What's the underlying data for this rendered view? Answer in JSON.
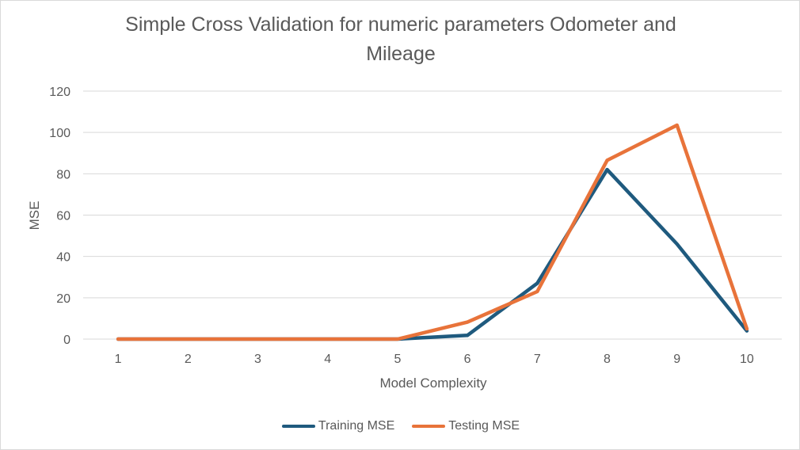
{
  "chart_data": {
    "type": "line",
    "title_lines": [
      "Simple Cross Validation for numeric parameters Odometer and",
      "Mileage"
    ],
    "xlabel": "Model Complexity",
    "ylabel": "MSE",
    "x": [
      1,
      2,
      3,
      4,
      5,
      6,
      7,
      8,
      9,
      10
    ],
    "ylim": [
      0,
      120
    ],
    "yticks": [
      0,
      20,
      40,
      60,
      80,
      100,
      120
    ],
    "grid": true,
    "legend_position": "bottom",
    "series": [
      {
        "name": "Training MSE",
        "color": "#1f5a7e",
        "values": [
          0,
          0,
          0,
          0,
          0,
          1.8,
          27,
          82,
          46,
          4
        ]
      },
      {
        "name": "Testing MSE",
        "color": "#e8733a",
        "values": [
          0,
          0,
          0,
          0,
          0,
          8.2,
          23,
          86.5,
          103.5,
          5
        ]
      }
    ]
  }
}
